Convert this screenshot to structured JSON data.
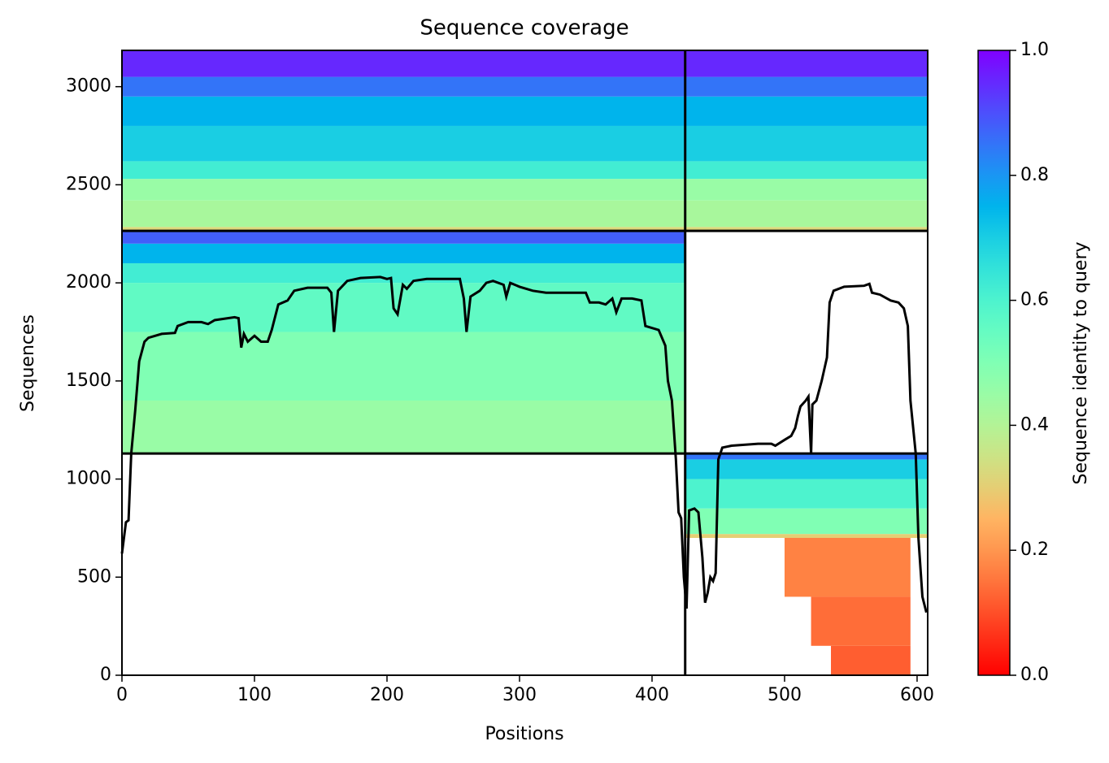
{
  "chart_data": {
    "type": "coverage",
    "title": "Sequence coverage",
    "xlabel": "Positions",
    "ylabel": "Sequences",
    "xlim": [
      0,
      608
    ],
    "ylim": [
      0,
      3185
    ],
    "xticks": [
      0,
      100,
      200,
      300,
      400,
      500,
      600
    ],
    "yticks": [
      0,
      500,
      1000,
      1500,
      2000,
      2500,
      3000
    ],
    "colormap": "rainbow_r",
    "colorbar": {
      "label": "Sequence identity to query",
      "clim": [
        0,
        1
      ],
      "ticks": [
        {
          "value": 0,
          "label": "0.0"
        },
        {
          "value": 0.2,
          "label": "0.2"
        },
        {
          "value": 0.4,
          "label": "0.4"
        },
        {
          "value": 0.6,
          "label": "0.6"
        },
        {
          "value": 0.8,
          "label": "0.8"
        },
        {
          "value": 1,
          "label": "1.0"
        }
      ]
    },
    "dividers_x": [
      425
    ],
    "dividers_y": [
      1130,
      2265
    ],
    "bands": [
      {
        "x": [
          0,
          425
        ],
        "y": [
          2265,
          2285
        ],
        "identity": 0.32
      },
      {
        "x": [
          0,
          425
        ],
        "y": [
          2285,
          2420
        ],
        "identity": 0.42
      },
      {
        "x": [
          0,
          425
        ],
        "y": [
          2420,
          2530
        ],
        "identity": 0.45
      },
      {
        "x": [
          0,
          425
        ],
        "y": [
          2530,
          2620
        ],
        "identity": 0.62
      },
      {
        "x": [
          0,
          425
        ],
        "y": [
          2620,
          2800
        ],
        "identity": 0.7
      },
      {
        "x": [
          0,
          425
        ],
        "y": [
          2800,
          2950
        ],
        "identity": 0.75
      },
      {
        "x": [
          0,
          425
        ],
        "y": [
          2950,
          3050
        ],
        "identity": 0.85
      },
      {
        "x": [
          0,
          425
        ],
        "y": [
          3050,
          3185
        ],
        "identity": 0.95
      },
      {
        "x": [
          425,
          608
        ],
        "y": [
          2265,
          2285
        ],
        "identity": 0.32
      },
      {
        "x": [
          425,
          608
        ],
        "y": [
          2285,
          2420
        ],
        "identity": 0.42
      },
      {
        "x": [
          425,
          608
        ],
        "y": [
          2420,
          2530
        ],
        "identity": 0.45
      },
      {
        "x": [
          425,
          608
        ],
        "y": [
          2530,
          2620
        ],
        "identity": 0.62
      },
      {
        "x": [
          425,
          608
        ],
        "y": [
          2620,
          2800
        ],
        "identity": 0.7
      },
      {
        "x": [
          425,
          608
        ],
        "y": [
          2800,
          2950
        ],
        "identity": 0.75
      },
      {
        "x": [
          425,
          608
        ],
        "y": [
          2950,
          3050
        ],
        "identity": 0.85
      },
      {
        "x": [
          425,
          608
        ],
        "y": [
          3050,
          3185
        ],
        "identity": 0.95
      },
      {
        "x": [
          0,
          425
        ],
        "y": [
          1130,
          1400
        ],
        "identity": 0.45
      },
      {
        "x": [
          0,
          425
        ],
        "y": [
          1400,
          1750
        ],
        "identity": 0.5
      },
      {
        "x": [
          0,
          425
        ],
        "y": [
          1750,
          2000
        ],
        "identity": 0.56
      },
      {
        "x": [
          0,
          425
        ],
        "y": [
          2000,
          2100
        ],
        "identity": 0.62
      },
      {
        "x": [
          0,
          425
        ],
        "y": [
          2100,
          2200
        ],
        "identity": 0.75
      },
      {
        "x": [
          0,
          425
        ],
        "y": [
          2200,
          2265
        ],
        "identity": 0.88
      },
      {
        "x": [
          425,
          608
        ],
        "y": [
          700,
          720
        ],
        "identity": 0.3
      },
      {
        "x": [
          425,
          608
        ],
        "y": [
          720,
          850
        ],
        "identity": 0.5
      },
      {
        "x": [
          425,
          608
        ],
        "y": [
          850,
          1000
        ],
        "identity": 0.6
      },
      {
        "x": [
          425,
          608
        ],
        "y": [
          1000,
          1100
        ],
        "identity": 0.7
      },
      {
        "x": [
          425,
          608
        ],
        "y": [
          1100,
          1130
        ],
        "identity": 0.85
      },
      {
        "x": [
          500,
          595
        ],
        "y": [
          400,
          700
        ],
        "identity": 0.17
      },
      {
        "x": [
          520,
          595
        ],
        "y": [
          150,
          400
        ],
        "identity": 0.14
      },
      {
        "x": [
          535,
          595
        ],
        "y": [
          0,
          150
        ],
        "identity": 0.12
      }
    ],
    "line": {
      "color": "#000000",
      "x": [
        0,
        3,
        5,
        7,
        10,
        13,
        17,
        20,
        30,
        40,
        42,
        50,
        60,
        65,
        70,
        85,
        88,
        90,
        92,
        95,
        100,
        105,
        110,
        113,
        118,
        125,
        130,
        140,
        155,
        158,
        160,
        163,
        170,
        180,
        195,
        200,
        203,
        205,
        208,
        212,
        215,
        220,
        230,
        255,
        258,
        260,
        263,
        270,
        275,
        280,
        288,
        290,
        293,
        300,
        310,
        320,
        350,
        353,
        360,
        365,
        370,
        373,
        377,
        385,
        392,
        395,
        405,
        410,
        412,
        415,
        418,
        420,
        422,
        424,
        426,
        428,
        432,
        435,
        438,
        440,
        442,
        444,
        446,
        448,
        450,
        453,
        460,
        480,
        490,
        493,
        500,
        505,
        508,
        510,
        512,
        516,
        518,
        520,
        521,
        524,
        528,
        532,
        534,
        537,
        545,
        560,
        564,
        566,
        572,
        580,
        586,
        590,
        593,
        595,
        599,
        601,
        604,
        607
      ],
      "y": [
        620,
        780,
        790,
        1130,
        1350,
        1600,
        1700,
        1720,
        1740,
        1745,
        1780,
        1800,
        1800,
        1790,
        1810,
        1825,
        1820,
        1670,
        1740,
        1700,
        1730,
        1700,
        1700,
        1760,
        1890,
        1910,
        1960,
        1975,
        1975,
        1950,
        1750,
        1960,
        2010,
        2025,
        2030,
        2020,
        2025,
        1870,
        1840,
        1990,
        1970,
        2010,
        2020,
        2020,
        1920,
        1750,
        1930,
        1960,
        2000,
        2010,
        1990,
        1930,
        2000,
        1980,
        1960,
        1950,
        1950,
        1900,
        1900,
        1890,
        1920,
        1850,
        1920,
        1920,
        1910,
        1780,
        1760,
        1680,
        1500,
        1400,
        1100,
        830,
        800,
        500,
        340,
        840,
        850,
        830,
        600,
        370,
        420,
        500,
        480,
        520,
        1100,
        1160,
        1170,
        1180,
        1180,
        1170,
        1200,
        1220,
        1260,
        1320,
        1370,
        1400,
        1420,
        1130,
        1380,
        1400,
        1500,
        1620,
        1900,
        1960,
        1980,
        1985,
        1995,
        1950,
        1940,
        1910,
        1900,
        1870,
        1780,
        1400,
        1130,
        700,
        400,
        320
      ]
    }
  }
}
